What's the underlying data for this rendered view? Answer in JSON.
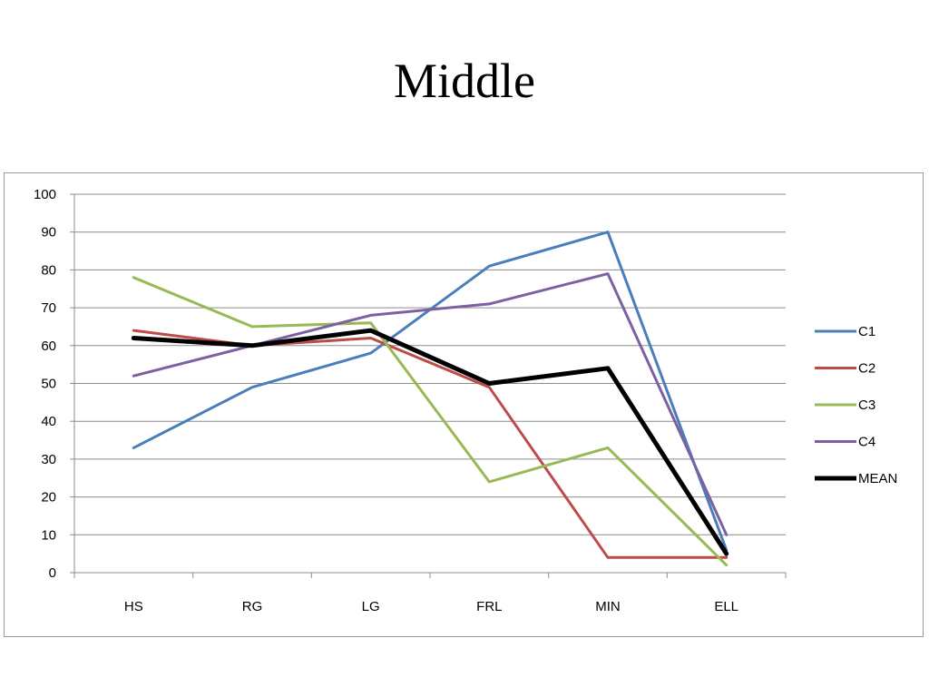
{
  "slide": {
    "title": "Middle"
  },
  "chart_data": {
    "type": "line",
    "title": "",
    "xlabel": "",
    "ylabel": "",
    "categories": [
      "HS",
      "RG",
      "LG",
      "FRL",
      "MIN",
      "ELL"
    ],
    "ylim": [
      0,
      100
    ],
    "yticks": [
      0,
      10,
      20,
      30,
      40,
      50,
      60,
      70,
      80,
      90,
      100
    ],
    "grid": true,
    "legend_position": "right",
    "series": [
      {
        "name": "C1",
        "color": "#4a7ebb",
        "values": [
          33,
          49,
          58,
          81,
          90,
          6
        ]
      },
      {
        "name": "C2",
        "color": "#be4b48",
        "values": [
          64,
          60,
          62,
          49,
          4,
          4
        ]
      },
      {
        "name": "C3",
        "color": "#98b954",
        "values": [
          78,
          65,
          66,
          24,
          33,
          2
        ]
      },
      {
        "name": "C4",
        "color": "#7d60a0",
        "values": [
          52,
          60,
          68,
          71,
          79,
          10
        ]
      },
      {
        "name": "MEAN",
        "color": "#000000",
        "values": [
          62,
          60,
          64,
          50,
          54,
          5
        ],
        "bold": true
      }
    ]
  }
}
